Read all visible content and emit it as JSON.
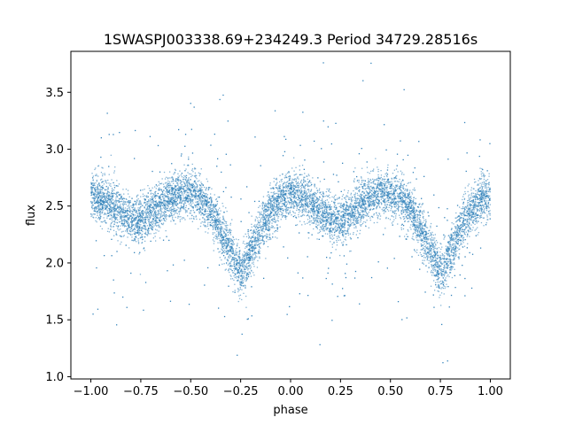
{
  "chart_data": {
    "type": "scatter",
    "title": "1SWASPJ003338.69+234249.3 Period 34729.28516s",
    "xlabel": "phase",
    "ylabel": "flux",
    "xlim": [
      -1.1,
      1.1
    ],
    "ylim": [
      0.98,
      3.86
    ],
    "xticks": [
      -1.0,
      -0.75,
      -0.5,
      -0.25,
      0.0,
      0.25,
      0.5,
      0.75,
      1.0
    ],
    "xtick_labels": [
      "−1.00",
      "−0.75",
      "−0.50",
      "−0.25",
      "0.00",
      "0.25",
      "0.50",
      "0.75",
      "1.00"
    ],
    "yticks": [
      1.0,
      1.5,
      2.0,
      2.5,
      3.0,
      3.5
    ],
    "ytick_labels": [
      "1.0",
      "1.5",
      "2.0",
      "2.5",
      "3.0",
      "3.5"
    ],
    "grid": false,
    "marker_color": "#1f77b4",
    "series": [
      {
        "x": [
          -1.0,
          -0.95,
          -0.9,
          -0.85,
          -0.8,
          -0.75,
          -0.7,
          -0.65,
          -0.6,
          -0.55,
          -0.5,
          -0.45,
          -0.4,
          -0.35,
          -0.3,
          -0.25,
          -0.2,
          -0.15,
          -0.1,
          -0.05,
          0.0,
          0.05,
          0.1,
          0.15,
          0.2,
          0.25,
          0.3,
          0.35,
          0.4,
          0.45,
          0.5,
          0.55,
          0.6,
          0.65,
          0.7,
          0.75,
          0.8,
          0.85,
          0.9,
          0.95,
          1.0
        ],
        "y": [
          2.58,
          2.56,
          2.52,
          2.44,
          2.38,
          2.38,
          2.44,
          2.52,
          2.58,
          2.6,
          2.6,
          2.56,
          2.46,
          2.3,
          2.1,
          1.9,
          2.1,
          2.3,
          2.46,
          2.56,
          2.6,
          2.58,
          2.52,
          2.44,
          2.38,
          2.38,
          2.44,
          2.52,
          2.58,
          2.6,
          2.6,
          2.56,
          2.46,
          2.3,
          2.1,
          1.9,
          2.1,
          2.3,
          2.46,
          2.56,
          2.6
        ]
      }
    ]
  }
}
